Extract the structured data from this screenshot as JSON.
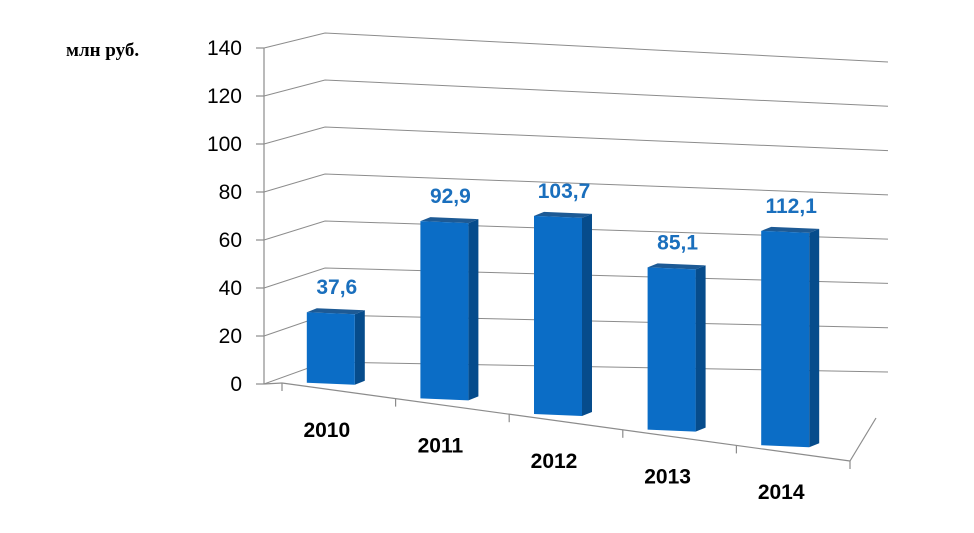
{
  "chart_data": {
    "type": "bar",
    "title": "",
    "unit_label": "млн руб.",
    "categories": [
      "2010",
      "2011",
      "2012",
      "2013",
      "2014"
    ],
    "values": [
      37.6,
      92.9,
      103.7,
      85.1,
      112.1
    ],
    "value_labels": [
      "37,6",
      "92,9",
      "103,7",
      "85,1",
      "112,1"
    ],
    "ylim": [
      0,
      140
    ],
    "yticks": [
      0,
      20,
      40,
      60,
      80,
      100,
      120,
      140
    ],
    "grid": true,
    "legend": "none",
    "style": "3d-perspective",
    "colors": {
      "bar_front": "#0b6dc6",
      "bar_side": "#064c8c",
      "bar_top": "#1d5a95",
      "data_label": "#1a6fbd"
    }
  }
}
